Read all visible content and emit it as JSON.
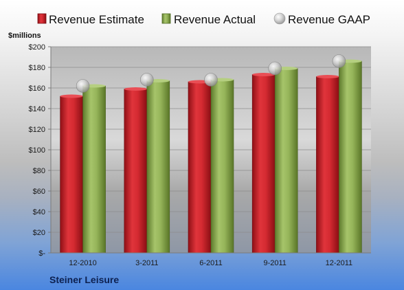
{
  "chart_data": {
    "type": "bar",
    "unit_label": "$millions",
    "company": "Steiner Leisure",
    "categories": [
      "12-2010",
      "3-2011",
      "6-2011",
      "9-2011",
      "12-2011"
    ],
    "series": [
      {
        "name": "Revenue Estimate",
        "kind": "bar",
        "color": "#cc1f27",
        "values": [
          152,
          159,
          166,
          173,
          171
        ]
      },
      {
        "name": "Revenue Actual",
        "kind": "bar",
        "color": "#8fae55",
        "values": [
          162,
          167,
          168,
          179,
          186
        ]
      },
      {
        "name": "Revenue GAAP",
        "kind": "marker",
        "color": "#c8c8c8",
        "values": [
          162,
          168,
          168,
          179,
          186
        ]
      }
    ],
    "ylim": [
      0,
      200
    ],
    "yticks": [
      0,
      20,
      40,
      60,
      80,
      100,
      120,
      140,
      160,
      180,
      200
    ],
    "ytick_labels": [
      "$-",
      "$20",
      "$40",
      "$60",
      "$80",
      "$100",
      "$120",
      "$140",
      "$160",
      "$180",
      "$200"
    ],
    "grid": true,
    "legend_position": "top"
  }
}
